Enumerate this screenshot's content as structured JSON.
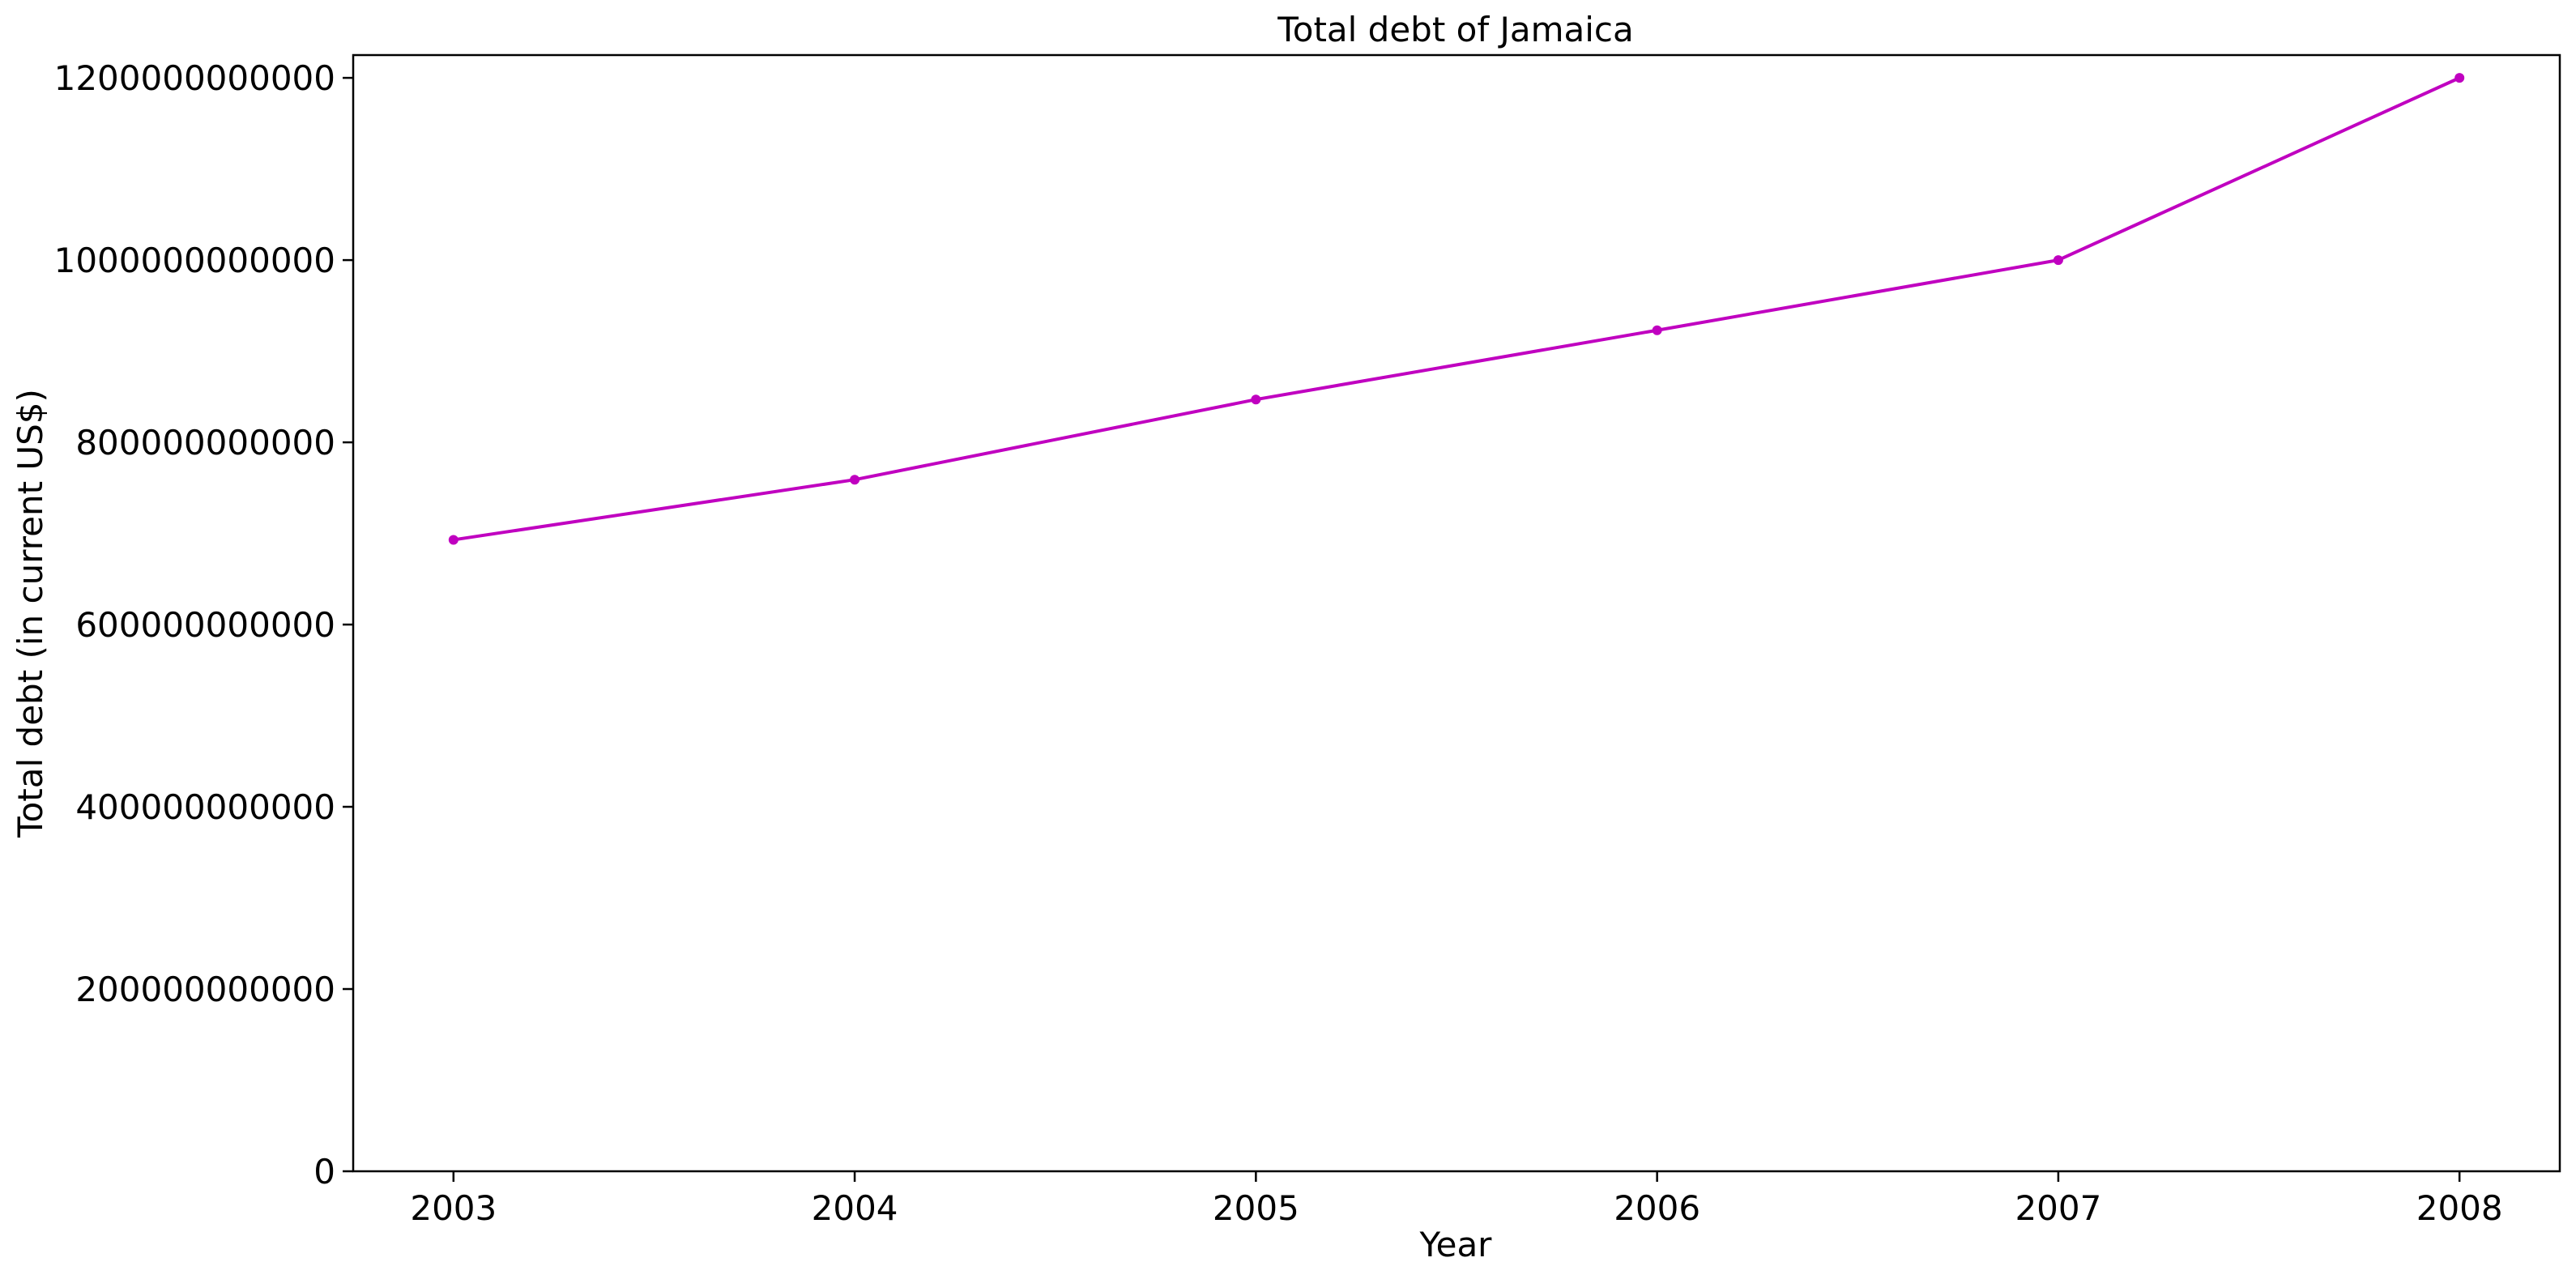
{
  "chart_data": {
    "type": "line",
    "title": "Total debt of Jamaica",
    "xlabel": "Year",
    "ylabel": "Total debt (in current US$)",
    "x": [
      2003,
      2004,
      2005,
      2006,
      2007,
      2008
    ],
    "series": [
      {
        "values": [
          693000000000,
          759000000000,
          847000000000,
          923000000000,
          1000000000000,
          1200000000000
        ],
        "color": "#c000c0"
      }
    ],
    "x_ticks": [
      "2003",
      "2004",
      "2005",
      "2006",
      "2007",
      "2008"
    ],
    "y_ticks": [
      "0",
      "200000000000",
      "400000000000",
      "600000000000",
      "800000000000",
      "1000000000000",
      "1200000000000"
    ],
    "xlim": [
      2002.75,
      2008.25
    ],
    "ylim": [
      0,
      1225000000000
    ],
    "grid": false,
    "marker": "dot"
  }
}
